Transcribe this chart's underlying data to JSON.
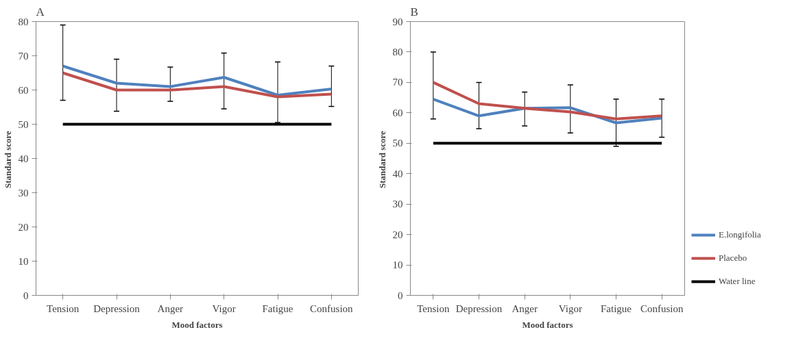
{
  "chart_data": [
    {
      "type": "line",
      "title": "A",
      "xlabel": "Mood factors",
      "ylabel": "Standard  score",
      "categories": [
        "Tension",
        "Depression",
        "Anger",
        "Vigor",
        "Fatigue",
        "Confusion"
      ],
      "ylim": [
        0,
        80
      ],
      "yticks": [
        0,
        10,
        20,
        30,
        40,
        50,
        60,
        70,
        80
      ],
      "grid": false,
      "legend": false,
      "series": [
        {
          "color": "#4f81bd",
          "values": [
            67,
            62,
            61,
            63.7,
            58.5,
            60.3
          ],
          "errors": [
            [
              57,
              79
            ],
            [
              53.8,
              69
            ],
            [
              56.7,
              66.7
            ],
            [
              54.5,
              70.8
            ],
            [
              50.5,
              68.2
            ],
            [
              55.2,
              67
            ]
          ]
        },
        {
          "color": "#c0504d",
          "values": [
            65,
            60,
            60,
            61,
            58,
            58.8
          ]
        },
        {
          "color": "#000000",
          "values": [
            50,
            50,
            50,
            50,
            50,
            50
          ]
        }
      ]
    },
    {
      "type": "line",
      "title": "B",
      "xlabel": "Mood factors",
      "ylabel": "Standard  score",
      "categories": [
        "Tension",
        "Depression",
        "Anger",
        "Vigor",
        "Fatigue",
        "Confusion"
      ],
      "ylim": [
        0,
        90
      ],
      "yticks": [
        0,
        10,
        20,
        30,
        40,
        50,
        60,
        70,
        80,
        90
      ],
      "grid": false,
      "legend": "right",
      "series": [
        {
          "name": "E.longifolia",
          "color": "#4f81bd",
          "values": [
            64.5,
            59,
            61.5,
            61.7,
            56.7,
            58.3
          ],
          "errors": [
            [
              58,
              80
            ],
            [
              54.8,
              70
            ],
            [
              55.7,
              66.8
            ],
            [
              53.4,
              69.2
            ],
            [
              49,
              64.5
            ],
            [
              52,
              64.5
            ]
          ]
        },
        {
          "name": "Placebo",
          "color": "#c0504d",
          "values": [
            70,
            63,
            61.5,
            60.3,
            58,
            59
          ]
        },
        {
          "name": "Water line",
          "color": "#000000",
          "values": [
            50,
            50,
            50,
            50,
            50,
            50
          ]
        }
      ]
    }
  ]
}
